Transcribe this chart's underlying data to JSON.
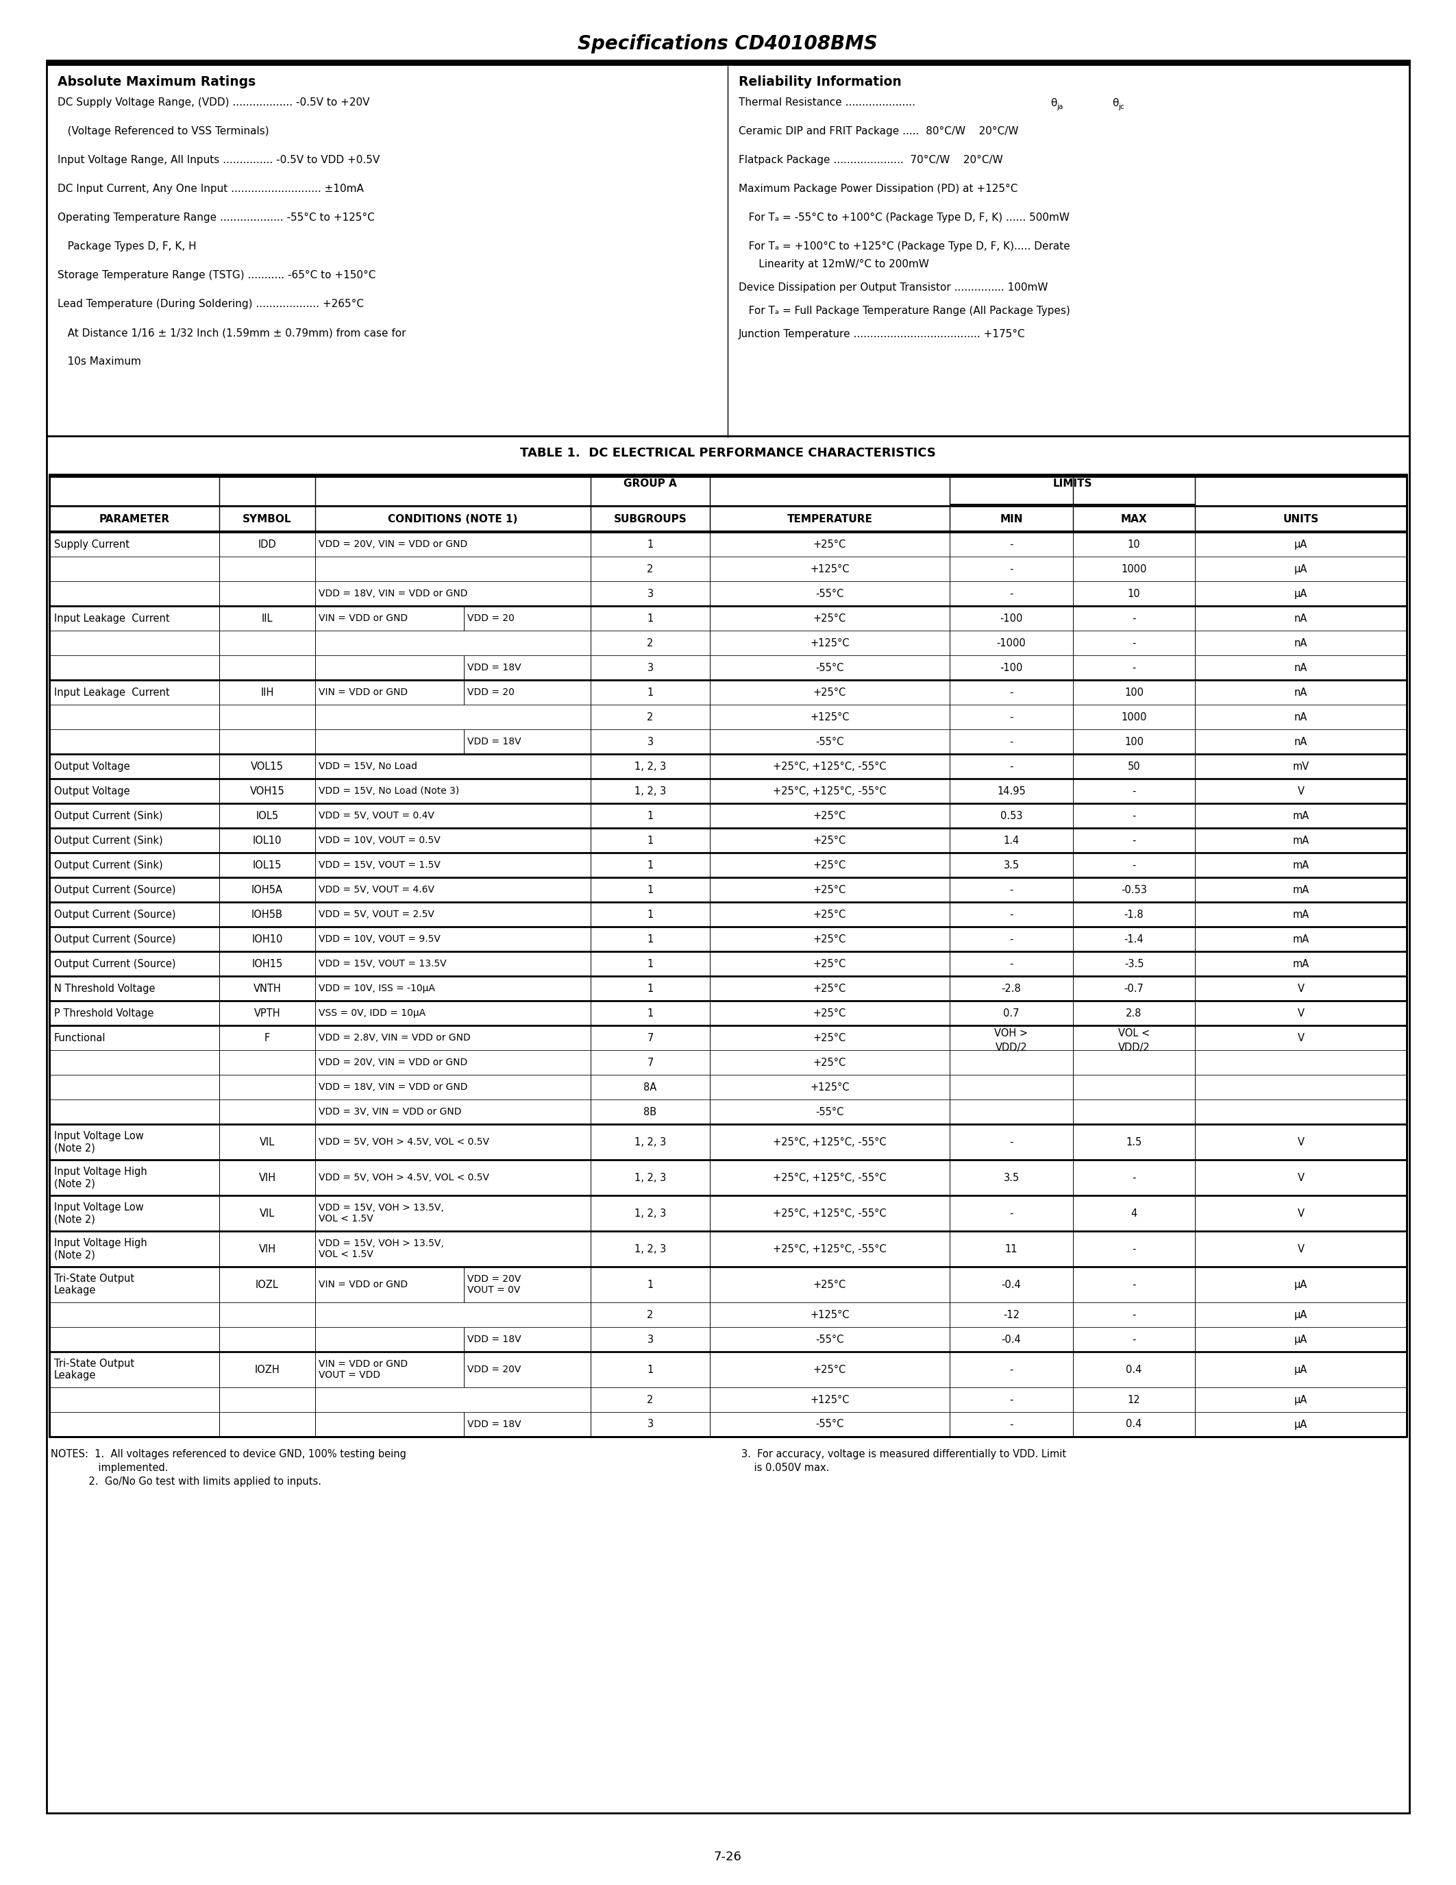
{
  "title": "Specifications CD40108BMS",
  "page_number": "7-26",
  "abs_max_title": "Absolute Maximum Ratings",
  "reliability_title": "Reliability Information",
  "table_title": "TABLE 1.  DC ELECTRICAL PERFORMANCE CHARACTERISTICS",
  "table_rows": [
    {
      "param": "Supply Current",
      "symbol": "IDD",
      "cond1": "VDD = 20V, VIN = VDD or GND",
      "cond2": "",
      "subgroup": "1",
      "temp": "+25°C",
      "min": "-",
      "max": "10",
      "units": "μA",
      "group_end": true,
      "sub_end": false
    },
    {
      "param": "",
      "symbol": "",
      "cond1": "",
      "cond2": "",
      "subgroup": "2",
      "temp": "+125°C",
      "min": "-",
      "max": "1000",
      "units": "μA",
      "group_end": false,
      "sub_end": false
    },
    {
      "param": "",
      "symbol": "",
      "cond1": "VDD = 18V, VIN = VDD or GND",
      "cond2": "",
      "subgroup": "3",
      "temp": "-55°C",
      "min": "-",
      "max": "10",
      "units": "μA",
      "group_end": false,
      "sub_end": true
    },
    {
      "param": "Input Leakage  Current",
      "symbol": "IIL",
      "cond1": "VIN = VDD or GND",
      "cond2": "VDD = 20",
      "subgroup": "1",
      "temp": "+25°C",
      "min": "-100",
      "max": "-",
      "units": "nA",
      "group_end": false,
      "sub_end": false
    },
    {
      "param": "",
      "symbol": "",
      "cond1": "",
      "cond2": "",
      "subgroup": "2",
      "temp": "+125°C",
      "min": "-1000",
      "max": "-",
      "units": "nA",
      "group_end": false,
      "sub_end": false
    },
    {
      "param": "",
      "symbol": "",
      "cond1": "",
      "cond2": "VDD = 18V",
      "subgroup": "3",
      "temp": "-55°C",
      "min": "-100",
      "max": "-",
      "units": "nA",
      "group_end": false,
      "sub_end": true
    },
    {
      "param": "Input Leakage  Current",
      "symbol": "IIH",
      "cond1": "VIN = VDD or GND",
      "cond2": "VDD = 20",
      "subgroup": "1",
      "temp": "+25°C",
      "min": "-",
      "max": "100",
      "units": "nA",
      "group_end": false,
      "sub_end": false
    },
    {
      "param": "",
      "symbol": "",
      "cond1": "",
      "cond2": "",
      "subgroup": "2",
      "temp": "+125°C",
      "min": "-",
      "max": "1000",
      "units": "nA",
      "group_end": false,
      "sub_end": false
    },
    {
      "param": "",
      "symbol": "",
      "cond1": "",
      "cond2": "VDD = 18V",
      "subgroup": "3",
      "temp": "-55°C",
      "min": "-",
      "max": "100",
      "units": "nA",
      "group_end": false,
      "sub_end": true
    },
    {
      "param": "Output Voltage",
      "symbol": "VOL15",
      "cond1": "VDD = 15V, No Load",
      "cond2": "",
      "subgroup": "1, 2, 3",
      "temp": "+25°C, +125°C, -55°C",
      "min": "-",
      "max": "50",
      "units": "mV",
      "group_end": false,
      "sub_end": true
    },
    {
      "param": "Output Voltage",
      "symbol": "VOH15",
      "cond1": "VDD = 15V, No Load (Note 3)",
      "cond2": "",
      "subgroup": "1, 2, 3",
      "temp": "+25°C, +125°C, -55°C",
      "min": "14.95",
      "max": "-",
      "units": "V",
      "group_end": false,
      "sub_end": true
    },
    {
      "param": "Output Current (Sink)",
      "symbol": "IOL5",
      "cond1": "VDD = 5V, VOUT = 0.4V",
      "cond2": "",
      "subgroup": "1",
      "temp": "+25°C",
      "min": "0.53",
      "max": "-",
      "units": "mA",
      "group_end": false,
      "sub_end": true
    },
    {
      "param": "Output Current (Sink)",
      "symbol": "IOL10",
      "cond1": "VDD = 10V, VOUT = 0.5V",
      "cond2": "",
      "subgroup": "1",
      "temp": "+25°C",
      "min": "1.4",
      "max": "-",
      "units": "mA",
      "group_end": false,
      "sub_end": true
    },
    {
      "param": "Output Current (Sink)",
      "symbol": "IOL15",
      "cond1": "VDD = 15V, VOUT = 1.5V",
      "cond2": "",
      "subgroup": "1",
      "temp": "+25°C",
      "min": "3.5",
      "max": "-",
      "units": "mA",
      "group_end": false,
      "sub_end": true
    },
    {
      "param": "Output Current (Source)",
      "symbol": "IOH5A",
      "cond1": "VDD = 5V, VOUT = 4.6V",
      "cond2": "",
      "subgroup": "1",
      "temp": "+25°C",
      "min": "-",
      "max": "-0.53",
      "units": "mA",
      "group_end": false,
      "sub_end": true
    },
    {
      "param": "Output Current (Source)",
      "symbol": "IOH5B",
      "cond1": "VDD = 5V, VOUT = 2.5V",
      "cond2": "",
      "subgroup": "1",
      "temp": "+25°C",
      "min": "-",
      "max": "-1.8",
      "units": "mA",
      "group_end": false,
      "sub_end": true
    },
    {
      "param": "Output Current (Source)",
      "symbol": "IOH10",
      "cond1": "VDD = 10V, VOUT = 9.5V",
      "cond2": "",
      "subgroup": "1",
      "temp": "+25°C",
      "min": "-",
      "max": "-1.4",
      "units": "mA",
      "group_end": false,
      "sub_end": true
    },
    {
      "param": "Output Current (Source)",
      "symbol": "IOH15",
      "cond1": "VDD = 15V, VOUT = 13.5V",
      "cond2": "",
      "subgroup": "1",
      "temp": "+25°C",
      "min": "-",
      "max": "-3.5",
      "units": "mA",
      "group_end": false,
      "sub_end": true
    },
    {
      "param": "N Threshold Voltage",
      "symbol": "VNTH",
      "cond1": "VDD = 10V, ISS = -10μA",
      "cond2": "",
      "subgroup": "1",
      "temp": "+25°C",
      "min": "-2.8",
      "max": "-0.7",
      "units": "V",
      "group_end": false,
      "sub_end": true
    },
    {
      "param": "P Threshold Voltage",
      "symbol": "VPTH",
      "cond1": "VSS = 0V, IDD = 10μA",
      "cond2": "",
      "subgroup": "1",
      "temp": "+25°C",
      "min": "0.7",
      "max": "2.8",
      "units": "V",
      "group_end": false,
      "sub_end": true
    },
    {
      "param": "Functional",
      "symbol": "F",
      "cond1": "VDD = 2.8V, VIN = VDD or GND",
      "cond2": "",
      "subgroup": "7",
      "temp": "+25°C",
      "min": "VOH >",
      "max": "VOL <",
      "units": "V",
      "group_end": false,
      "sub_end": false,
      "min2": "VDD/2",
      "max2": "VDD/2"
    },
    {
      "param": "",
      "symbol": "",
      "cond1": "VDD = 20V, VIN = VDD or GND",
      "cond2": "",
      "subgroup": "7",
      "temp": "+25°C",
      "min": "",
      "max": "",
      "units": "",
      "group_end": false,
      "sub_end": false
    },
    {
      "param": "",
      "symbol": "",
      "cond1": "VDD = 18V, VIN = VDD or GND",
      "cond2": "",
      "subgroup": "8A",
      "temp": "+125°C",
      "min": "",
      "max": "",
      "units": "",
      "group_end": false,
      "sub_end": false
    },
    {
      "param": "",
      "symbol": "",
      "cond1": "VDD = 3V, VIN = VDD or GND",
      "cond2": "",
      "subgroup": "8B",
      "temp": "-55°C",
      "min": "",
      "max": "",
      "units": "",
      "group_end": false,
      "sub_end": true
    },
    {
      "param": "Input Voltage Low\n(Note 2)",
      "symbol": "VIL",
      "cond1": "VDD = 5V, VOH > 4.5V, VOL < 0.5V",
      "cond2": "",
      "subgroup": "1, 2, 3",
      "temp": "+25°C, +125°C, -55°C",
      "min": "-",
      "max": "1.5",
      "units": "V",
      "group_end": false,
      "sub_end": true
    },
    {
      "param": "Input Voltage High\n(Note 2)",
      "symbol": "VIH",
      "cond1": "VDD = 5V, VOH > 4.5V, VOL < 0.5V",
      "cond2": "",
      "subgroup": "1, 2, 3",
      "temp": "+25°C, +125°C, -55°C",
      "min": "3.5",
      "max": "-",
      "units": "V",
      "group_end": false,
      "sub_end": true
    },
    {
      "param": "Input Voltage Low\n(Note 2)",
      "symbol": "VIL",
      "cond1": "VDD = 15V, VOH > 13.5V,\nVOL < 1.5V",
      "cond2": "",
      "subgroup": "1, 2, 3",
      "temp": "+25°C, +125°C, -55°C",
      "min": "-",
      "max": "4",
      "units": "V",
      "group_end": false,
      "sub_end": true
    },
    {
      "param": "Input Voltage High\n(Note 2)",
      "symbol": "VIH",
      "cond1": "VDD = 15V, VOH > 13.5V,\nVOL < 1.5V",
      "cond2": "",
      "subgroup": "1, 2, 3",
      "temp": "+25°C, +125°C, -55°C",
      "min": "11",
      "max": "-",
      "units": "V",
      "group_end": false,
      "sub_end": true
    },
    {
      "param": "Tri-State Output\nLeakage",
      "symbol": "IOZL",
      "cond1": "VIN = VDD or GND",
      "cond2": "VDD = 20V\nVOUT = 0V",
      "subgroup": "1",
      "temp": "+25°C",
      "min": "-0.4",
      "max": "-",
      "units": "μA",
      "group_end": false,
      "sub_end": false
    },
    {
      "param": "",
      "symbol": "",
      "cond1": "",
      "cond2": "",
      "subgroup": "2",
      "temp": "+125°C",
      "min": "-12",
      "max": "-",
      "units": "μA",
      "group_end": false,
      "sub_end": false
    },
    {
      "param": "",
      "symbol": "",
      "cond1": "",
      "cond2": "VDD = 18V",
      "subgroup": "3",
      "temp": "-55°C",
      "min": "-0.4",
      "max": "-",
      "units": "μA",
      "group_end": false,
      "sub_end": true
    },
    {
      "param": "Tri-State Output\nLeakage",
      "symbol": "IOZH",
      "cond1": "VIN = VDD or GND\nVOUT = VDD",
      "cond2": "VDD = 20V",
      "subgroup": "1",
      "temp": "+25°C",
      "min": "-",
      "max": "0.4",
      "units": "μA",
      "group_end": false,
      "sub_end": false
    },
    {
      "param": "",
      "symbol": "",
      "cond1": "",
      "cond2": "",
      "subgroup": "2",
      "temp": "+125°C",
      "min": "-",
      "max": "12",
      "units": "μA",
      "group_end": false,
      "sub_end": false
    },
    {
      "param": "",
      "symbol": "",
      "cond1": "",
      "cond2": "VDD = 18V",
      "subgroup": "3",
      "temp": "-55°C",
      "min": "-",
      "max": "0.4",
      "units": "μA",
      "group_end": false,
      "sub_end": true
    }
  ]
}
